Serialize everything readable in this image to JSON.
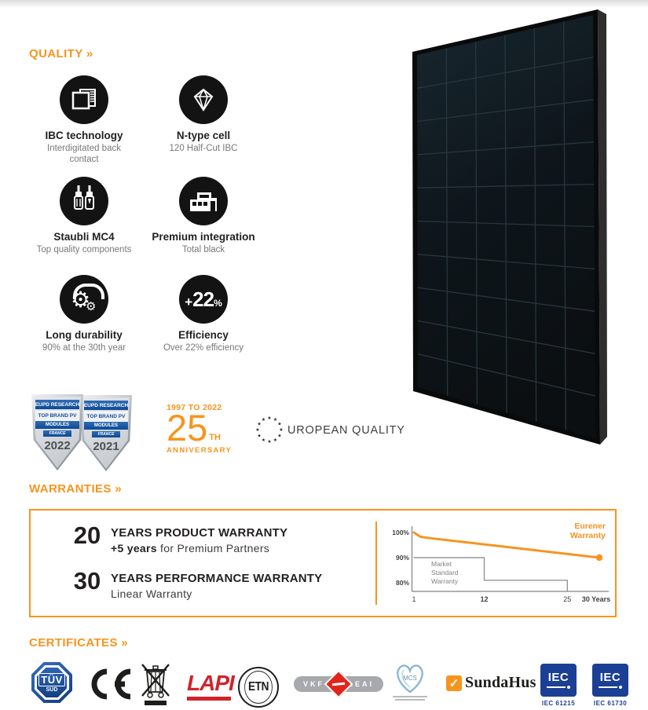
{
  "page": {
    "accent": "#F7941E",
    "background": "#ffffff"
  },
  "quality": {
    "heading": "QUALITY »",
    "items": [
      {
        "icon": "ibc-layers-icon",
        "title": "IBC technology",
        "subtitle": "Interdigitated back contact"
      },
      {
        "icon": "diamond-icon",
        "title": "N-type cell",
        "subtitle": "120 Half-Cut IBC"
      },
      {
        "icon": "mc4-connectors-icon",
        "title": "Staubli MC4",
        "subtitle": "Top quality components"
      },
      {
        "icon": "house-icon",
        "title": "Premium integration",
        "subtitle": "Total black"
      },
      {
        "icon": "gears-icon",
        "title": "Long durability",
        "subtitle": "90% at the 30th year"
      },
      {
        "icon": "efficiency-badge",
        "title": "Efficiency",
        "subtitle": "Over 22% efficiency",
        "badge": {
          "prefix": "+",
          "value": "22",
          "suffix": "%"
        }
      }
    ]
  },
  "awards": {
    "eupd_badges": [
      {
        "line1": "EUPD RESEARCH",
        "line2": "TOP BRAND PV",
        "line3": "MODULES",
        "line4": "FRANCE",
        "year": "2022"
      },
      {
        "line1": "EUPD RESEARCH",
        "line2": "TOP BRAND PV",
        "line3": "MODULES",
        "line4": "FRANCE",
        "year": "2021"
      }
    ],
    "anniversary": {
      "range": "1997 TO 2022",
      "number": "25",
      "suffix": "TH",
      "label": "ANNIVERSARY"
    },
    "european_quality_label": "UROPEAN QUALITY"
  },
  "warranties": {
    "heading": "WARRANTIES »",
    "items": [
      {
        "years": "20",
        "title": "YEARS PRODUCT WARRANTY",
        "sub_bold": "+5 years",
        "sub_rest": " for Premium Partners"
      },
      {
        "years": "30",
        "title": "YEARS PERFORMANCE WARRANTY",
        "sub_bold": "",
        "sub_rest": "Linear Warranty"
      }
    ]
  },
  "chart_data": {
    "type": "line",
    "title": "",
    "xlabel": "Years",
    "ylabel": "",
    "grid": false,
    "legend_position": "top-right",
    "xlim": [
      1,
      30
    ],
    "ylim": [
      76,
      102
    ],
    "x_ticks": [
      {
        "value": 1,
        "label": "1",
        "bold": false
      },
      {
        "value": 12,
        "label": "12",
        "bold": true
      },
      {
        "value": 25,
        "label": "25",
        "bold": false
      },
      {
        "value": 30,
        "label": "30 Years",
        "bold": true
      }
    ],
    "y_ticks": [
      {
        "value": 100,
        "label": "100%"
      },
      {
        "value": 90,
        "label": "90%"
      },
      {
        "value": 80,
        "label": "80%"
      }
    ],
    "series": [
      {
        "name": "Eurener Warranty",
        "color": "#F7941E",
        "width": 3,
        "end_dot": true,
        "x": [
          1,
          2,
          4,
          30
        ],
        "y": [
          100,
          98.3,
          97.6,
          90
        ]
      },
      {
        "name": "Market Standard Warranty",
        "color": "#939598",
        "width": 1.4,
        "end_dot": false,
        "x": [
          1,
          12,
          12,
          25,
          25
        ],
        "y": [
          90,
          90,
          81,
          81,
          76.5
        ]
      }
    ]
  },
  "certificates": {
    "heading": "CERTIFICATES »",
    "tuv": {
      "line1": "TÜV",
      "line2": "SÜD"
    },
    "ce": "CE",
    "lapi": "LAPI",
    "etn": "ETN",
    "vkf": {
      "left": "VKF",
      "right": "AEAI"
    },
    "mcs": "MCS",
    "sundahus": "SundaHus",
    "iec1": {
      "logo": "IEC",
      "label": "IEC 61215"
    },
    "iec2": {
      "logo": "IEC",
      "label": "IEC 61730"
    }
  }
}
